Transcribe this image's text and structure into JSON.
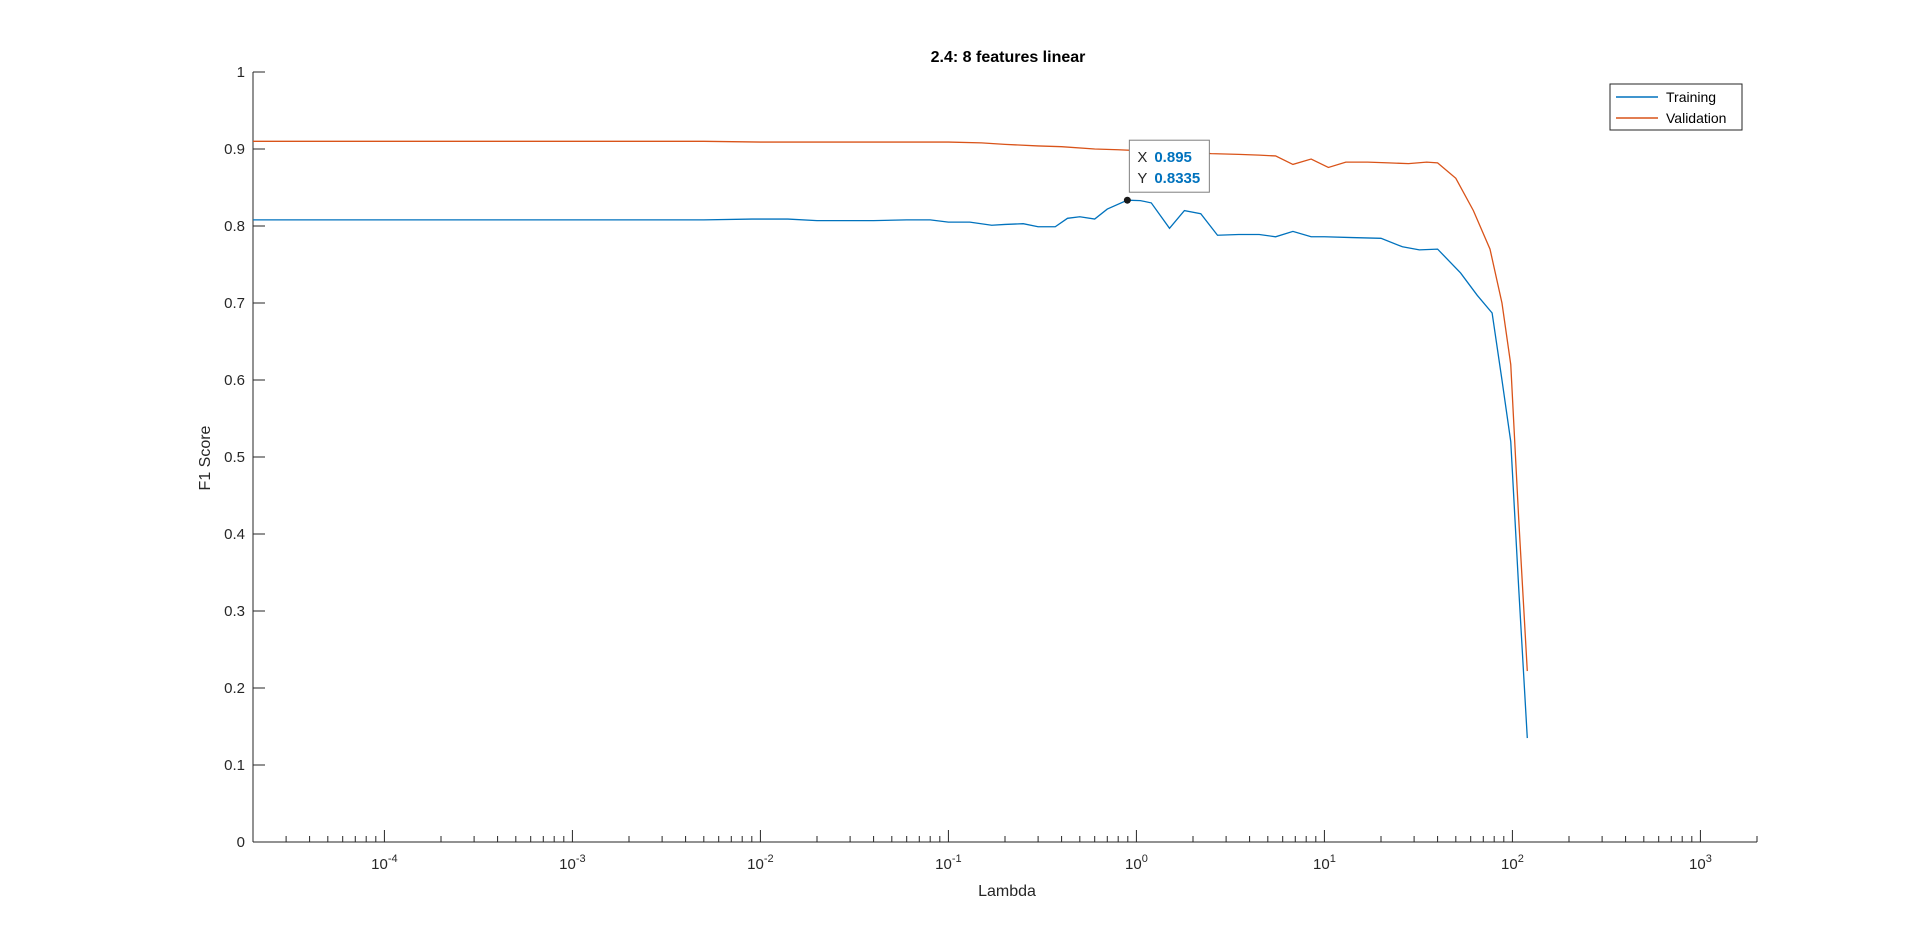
{
  "chart_data": {
    "type": "line",
    "title": "2.4: 8 features linear",
    "xlabel": "Lambda",
    "ylabel": "F1 Score",
    "xscale": "log",
    "xlim": [
      2e-05,
      2000
    ],
    "ylim": [
      0,
      1
    ],
    "grid": false,
    "legend_location": "top-right",
    "x_ticks": [
      {
        "value": 0.0001,
        "base": "10",
        "exp": "-4"
      },
      {
        "value": 0.001,
        "base": "10",
        "exp": "-3"
      },
      {
        "value": 0.01,
        "base": "10",
        "exp": "-2"
      },
      {
        "value": 0.1,
        "base": "10",
        "exp": "-1"
      },
      {
        "value": 1,
        "base": "10",
        "exp": "0"
      },
      {
        "value": 10,
        "base": "10",
        "exp": "1"
      },
      {
        "value": 100,
        "base": "10",
        "exp": "2"
      },
      {
        "value": 1000,
        "base": "10",
        "exp": "3"
      }
    ],
    "y_ticks": [
      {
        "value": 0,
        "label": "0"
      },
      {
        "value": 0.1,
        "label": "0.1"
      },
      {
        "value": 0.2,
        "label": "0.2"
      },
      {
        "value": 0.3,
        "label": "0.3"
      },
      {
        "value": 0.4,
        "label": "0.4"
      },
      {
        "value": 0.5,
        "label": "0.5"
      },
      {
        "value": 0.6,
        "label": "0.6"
      },
      {
        "value": 0.7,
        "label": "0.7"
      },
      {
        "value": 0.8,
        "label": "0.8"
      },
      {
        "value": 0.9,
        "label": "0.9"
      },
      {
        "value": 1,
        "label": "1"
      }
    ],
    "series": [
      {
        "name": "Training",
        "color": "#0072BD",
        "points": [
          [
            2e-05,
            0.808
          ],
          [
            0.0001,
            0.808
          ],
          [
            0.001,
            0.808
          ],
          [
            0.005,
            0.808
          ],
          [
            0.009,
            0.809
          ],
          [
            0.014,
            0.809
          ],
          [
            0.02,
            0.807
          ],
          [
            0.04,
            0.807
          ],
          [
            0.06,
            0.808
          ],
          [
            0.08,
            0.808
          ],
          [
            0.1,
            0.805
          ],
          [
            0.13,
            0.805
          ],
          [
            0.17,
            0.801
          ],
          [
            0.2,
            0.802
          ],
          [
            0.25,
            0.803
          ],
          [
            0.3,
            0.799
          ],
          [
            0.37,
            0.799
          ],
          [
            0.43,
            0.81
          ],
          [
            0.5,
            0.812
          ],
          [
            0.6,
            0.809
          ],
          [
            0.7,
            0.822
          ],
          [
            0.895,
            0.8335
          ],
          [
            1.05,
            0.833
          ],
          [
            1.2,
            0.83
          ],
          [
            1.5,
            0.797
          ],
          [
            1.8,
            0.82
          ],
          [
            2.2,
            0.816
          ],
          [
            2.7,
            0.788
          ],
          [
            3.5,
            0.789
          ],
          [
            4.5,
            0.789
          ],
          [
            5.5,
            0.786
          ],
          [
            6.8,
            0.793
          ],
          [
            8.5,
            0.786
          ],
          [
            10,
            0.786
          ],
          [
            14,
            0.785
          ],
          [
            20,
            0.784
          ],
          [
            26,
            0.773
          ],
          [
            32,
            0.769
          ],
          [
            40,
            0.77
          ],
          [
            53,
            0.739
          ],
          [
            65,
            0.71
          ],
          [
            78,
            0.687
          ],
          [
            88,
            0.6
          ],
          [
            98,
            0.52
          ],
          [
            108,
            0.33
          ],
          [
            120,
            0.135
          ]
        ]
      },
      {
        "name": "Validation",
        "color": "#D95319",
        "points": [
          [
            2e-05,
            0.91
          ],
          [
            0.0001,
            0.91
          ],
          [
            0.001,
            0.91
          ],
          [
            0.005,
            0.91
          ],
          [
            0.01,
            0.909
          ],
          [
            0.03,
            0.909
          ],
          [
            0.06,
            0.909
          ],
          [
            0.1,
            0.909
          ],
          [
            0.15,
            0.908
          ],
          [
            0.2,
            0.906
          ],
          [
            0.3,
            0.904
          ],
          [
            0.4,
            0.903
          ],
          [
            0.6,
            0.9
          ],
          [
            0.8,
            0.899
          ],
          [
            1.0,
            0.898
          ],
          [
            1.3,
            0.897
          ],
          [
            1.8,
            0.896
          ],
          [
            2.5,
            0.894
          ],
          [
            3.5,
            0.893
          ],
          [
            4.5,
            0.892
          ],
          [
            5.5,
            0.891
          ],
          [
            6.8,
            0.88
          ],
          [
            8.5,
            0.887
          ],
          [
            10.5,
            0.876
          ],
          [
            13,
            0.883
          ],
          [
            17,
            0.883
          ],
          [
            22,
            0.882
          ],
          [
            28,
            0.881
          ],
          [
            35,
            0.883
          ],
          [
            40,
            0.882
          ],
          [
            50,
            0.862
          ],
          [
            62,
            0.82
          ],
          [
            76,
            0.77
          ],
          [
            88,
            0.7
          ],
          [
            98,
            0.62
          ],
          [
            108,
            0.42
          ],
          [
            120,
            0.222
          ]
        ]
      }
    ],
    "datatip": {
      "x": 0.895,
      "y": 0.8335,
      "x_label": "X",
      "y_label": "Y",
      "x_text": "0.895",
      "y_text": "0.8335"
    }
  }
}
